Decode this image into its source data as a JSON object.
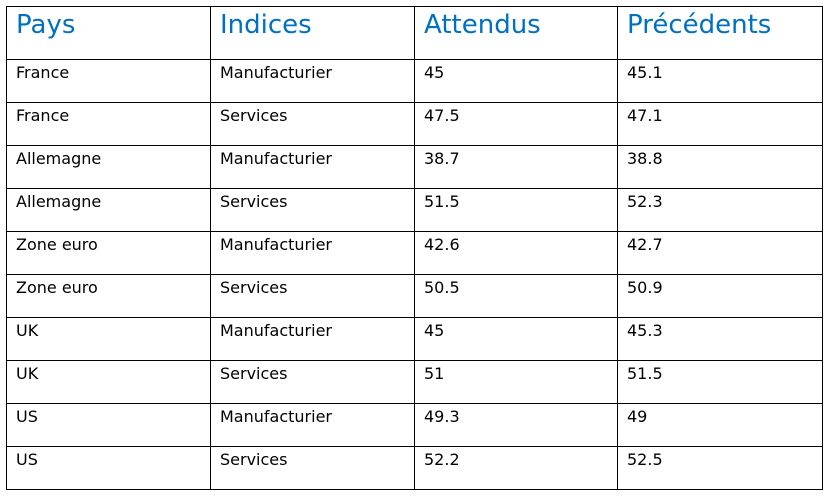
{
  "table": {
    "headers": [
      "Pays",
      "Indices",
      "Attendus",
      "Précédents"
    ],
    "rows": [
      [
        "France",
        "Manufacturier",
        "45",
        "45.1"
      ],
      [
        "France",
        "Services",
        "47.5",
        "47.1"
      ],
      [
        "Allemagne",
        "Manufacturier",
        "38.7",
        "38.8"
      ],
      [
        "Allemagne",
        "Services",
        "51.5",
        "52.3"
      ],
      [
        "Zone euro",
        "Manufacturier",
        "42.6",
        "42.7"
      ],
      [
        "Zone euro",
        "Services",
        "50.5",
        "50.9"
      ],
      [
        "UK",
        "Manufacturier",
        "45",
        "45.3"
      ],
      [
        "UK",
        "Services",
        "51",
        "51.5"
      ],
      [
        "US",
        "Manufacturier",
        "49.3",
        "49"
      ],
      [
        "US",
        "Services",
        "52.2",
        "52.5"
      ]
    ]
  },
  "colors": {
    "header_text": "#0070c0",
    "body_text": "#000000",
    "border": "#000000"
  }
}
